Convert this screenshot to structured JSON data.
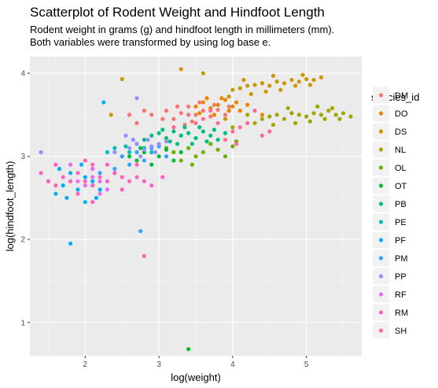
{
  "title": "Scatterplot of Rodent Weight and Hindfoot Length",
  "subtitle": [
    "Rodent weight in grams (g) and hindfoot length in millimeters (mm).",
    "Both variables were transformed by using log base e."
  ],
  "chart_data": {
    "type": "scatter",
    "title": "Scatterplot of Rodent Weight and Hindfoot Length",
    "xlabel": "log(weight)",
    "ylabel": "log(hindfoot_length)",
    "xlim": [
      1.25,
      5.75
    ],
    "ylim": [
      0.6,
      4.2
    ],
    "x_ticks": [
      2,
      3,
      4,
      5
    ],
    "y_ticks": [
      1,
      2,
      3,
      4
    ],
    "grid": true,
    "legend": {
      "title": "species_id",
      "position": "right"
    },
    "series": [
      {
        "name": "DM",
        "color": "#F8766D",
        "points": [
          [
            2.9,
            3.5
          ],
          [
            3.1,
            3.55
          ],
          [
            3.2,
            3.45
          ],
          [
            3.3,
            3.52
          ],
          [
            3.4,
            3.6
          ],
          [
            3.5,
            3.5
          ],
          [
            3.6,
            3.55
          ],
          [
            3.7,
            3.48
          ],
          [
            3.8,
            3.56
          ],
          [
            3.9,
            3.5
          ],
          [
            3.75,
            3.62
          ],
          [
            3.45,
            3.42
          ],
          [
            3.25,
            3.6
          ],
          [
            3.05,
            3.45
          ],
          [
            2.8,
            3.55
          ],
          [
            2.6,
            3.5
          ],
          [
            3.55,
            3.65
          ],
          [
            3.95,
            3.6
          ],
          [
            2.7,
            3.4
          ],
          [
            3.35,
            3.38
          ]
        ]
      },
      {
        "name": "DO",
        "color": "#E58700",
        "points": [
          [
            3.5,
            3.6
          ],
          [
            3.6,
            3.65
          ],
          [
            3.7,
            3.58
          ],
          [
            3.8,
            3.62
          ],
          [
            3.9,
            3.68
          ],
          [
            4.0,
            3.6
          ],
          [
            4.1,
            3.55
          ],
          [
            3.95,
            3.55
          ],
          [
            3.85,
            3.7
          ],
          [
            4.05,
            3.65
          ],
          [
            3.65,
            3.7
          ],
          [
            3.75,
            3.5
          ],
          [
            4.2,
            3.62
          ],
          [
            3.55,
            3.52
          ],
          [
            4.4,
            3.5
          ]
        ]
      },
      {
        "name": "DS",
        "color": "#C99800",
        "points": [
          [
            4.0,
            3.8
          ],
          [
            4.1,
            3.82
          ],
          [
            4.2,
            3.85
          ],
          [
            4.3,
            3.86
          ],
          [
            4.4,
            3.88
          ],
          [
            4.5,
            3.85
          ],
          [
            4.6,
            3.9
          ],
          [
            4.7,
            3.88
          ],
          [
            4.8,
            3.92
          ],
          [
            4.9,
            3.9
          ],
          [
            5.0,
            3.93
          ],
          [
            5.1,
            3.92
          ],
          [
            5.2,
            3.95
          ],
          [
            4.45,
            3.78
          ],
          [
            4.65,
            3.8
          ],
          [
            4.85,
            3.85
          ],
          [
            5.05,
            3.86
          ],
          [
            4.25,
            3.75
          ],
          [
            3.95,
            3.72
          ],
          [
            2.5,
            3.93
          ],
          [
            3.3,
            4.05
          ],
          [
            2.35,
            3.5
          ],
          [
            3.6,
            4.0
          ],
          [
            3.9,
            3.45
          ],
          [
            4.15,
            3.92
          ],
          [
            4.55,
            3.97
          ],
          [
            4.95,
            3.98
          ]
        ]
      },
      {
        "name": "NL",
        "color": "#A3A500",
        "points": [
          [
            4.4,
            3.45
          ],
          [
            4.5,
            3.48
          ],
          [
            4.6,
            3.5
          ],
          [
            4.7,
            3.45
          ],
          [
            4.8,
            3.52
          ],
          [
            4.9,
            3.5
          ],
          [
            5.0,
            3.48
          ],
          [
            5.1,
            3.52
          ],
          [
            5.2,
            3.5
          ],
          [
            5.3,
            3.55
          ],
          [
            5.4,
            3.5
          ],
          [
            5.5,
            3.52
          ],
          [
            5.6,
            3.48
          ],
          [
            4.85,
            3.4
          ],
          [
            5.05,
            3.42
          ],
          [
            5.25,
            3.45
          ],
          [
            4.55,
            3.38
          ],
          [
            5.45,
            3.45
          ],
          [
            4.2,
            3.5
          ],
          [
            4.3,
            3.4
          ],
          [
            4.0,
            3.35
          ],
          [
            4.75,
            3.58
          ],
          [
            5.15,
            3.6
          ],
          [
            5.35,
            3.58
          ]
        ]
      },
      {
        "name": "OL",
        "color": "#6BB100",
        "points": [
          [
            3.2,
            3.05
          ],
          [
            3.4,
            3.1
          ],
          [
            3.6,
            3.05
          ],
          [
            3.8,
            3.08
          ],
          [
            4.0,
            3.12
          ],
          [
            3.3,
            2.95
          ],
          [
            3.5,
            3.0
          ],
          [
            3.7,
            3.15
          ],
          [
            3.9,
            3.0
          ],
          [
            3.45,
            2.9
          ],
          [
            3.1,
            3.1
          ],
          [
            4.05,
            3.18
          ]
        ]
      },
      {
        "name": "OT",
        "color": "#00BA38",
        "points": [
          [
            2.6,
            3.0
          ],
          [
            2.8,
            3.05
          ],
          [
            3.0,
            3.0
          ],
          [
            3.2,
            2.95
          ],
          [
            2.9,
            2.9
          ],
          [
            3.1,
            3.08
          ],
          [
            2.7,
            2.95
          ],
          [
            3.3,
            3.05
          ],
          [
            2.75,
            3.1
          ],
          [
            3.4,
            0.68
          ]
        ]
      },
      {
        "name": "PB",
        "color": "#00BF7D",
        "points": [
          [
            2.9,
            3.25
          ],
          [
            3.0,
            3.28
          ],
          [
            3.1,
            3.22
          ],
          [
            3.2,
            3.3
          ],
          [
            3.3,
            3.25
          ],
          [
            3.4,
            3.28
          ],
          [
            3.5,
            3.22
          ],
          [
            3.6,
            3.3
          ],
          [
            3.7,
            3.25
          ],
          [
            3.8,
            3.2
          ],
          [
            3.15,
            3.18
          ],
          [
            3.35,
            3.35
          ],
          [
            3.55,
            3.35
          ],
          [
            3.05,
            3.32
          ],
          [
            3.25,
            3.15
          ],
          [
            3.45,
            3.15
          ],
          [
            3.65,
            3.18
          ],
          [
            3.75,
            3.32
          ],
          [
            2.8,
            3.2
          ],
          [
            3.9,
            3.28
          ]
        ]
      },
      {
        "name": "PE",
        "color": "#00C0B8",
        "points": [
          [
            2.4,
            3.1
          ],
          [
            2.6,
            3.05
          ],
          [
            2.8,
            3.1
          ],
          [
            2.5,
            3.0
          ],
          [
            2.7,
            3.15
          ],
          [
            2.9,
            3.05
          ],
          [
            2.3,
            3.05
          ],
          [
            2.55,
            3.12
          ]
        ]
      },
      {
        "name": "PF",
        "color": "#00B0F6",
        "points": [
          [
            1.5,
            2.7
          ],
          [
            1.7,
            2.65
          ],
          [
            1.8,
            2.8
          ],
          [
            1.9,
            2.6
          ],
          [
            2.0,
            2.75
          ],
          [
            2.1,
            2.7
          ],
          [
            1.6,
            2.55
          ],
          [
            2.2,
            2.6
          ],
          [
            1.8,
            1.95
          ],
          [
            2.25,
            3.65
          ],
          [
            2.0,
            2.45
          ],
          [
            1.75,
            2.5
          ],
          [
            1.95,
            2.9
          ],
          [
            2.15,
            2.5
          ],
          [
            2.3,
            2.7
          ],
          [
            1.65,
            2.85
          ]
        ]
      },
      {
        "name": "PM",
        "color": "#35A2FF",
        "points": [
          [
            2.5,
            3.0
          ],
          [
            2.7,
            3.05
          ],
          [
            2.9,
            3.1
          ],
          [
            3.1,
            3.0
          ],
          [
            2.6,
            2.9
          ],
          [
            2.8,
            2.95
          ],
          [
            3.0,
            3.12
          ],
          [
            2.4,
            2.85
          ],
          [
            2.75,
            2.1
          ],
          [
            2.65,
            3.2
          ],
          [
            2.2,
            2.8
          ]
        ]
      },
      {
        "name": "PP",
        "color": "#9590FF",
        "points": [
          [
            2.6,
            3.1
          ],
          [
            2.7,
            3.15
          ],
          [
            2.8,
            3.08
          ],
          [
            2.9,
            3.12
          ],
          [
            3.0,
            3.15
          ],
          [
            2.65,
            3.2
          ],
          [
            2.85,
            3.2
          ],
          [
            2.95,
            3.05
          ],
          [
            2.75,
            3.0
          ],
          [
            3.1,
            3.18
          ],
          [
            2.4,
            3.05
          ],
          [
            2.7,
            3.7
          ],
          [
            1.4,
            3.05
          ],
          [
            2.55,
            3.25
          ]
        ]
      },
      {
        "name": "RF",
        "color": "#E76BF3",
        "points": [
          [
            1.9,
            2.7
          ],
          [
            2.0,
            2.65
          ],
          [
            2.1,
            2.75
          ],
          [
            2.2,
            2.7
          ],
          [
            2.3,
            2.6
          ],
          [
            2.1,
            2.85
          ],
          [
            2.4,
            2.8
          ],
          [
            1.8,
            2.9
          ],
          [
            2.2,
            2.55
          ]
        ]
      },
      {
        "name": "RM",
        "color": "#FF62BC",
        "points": [
          [
            1.4,
            2.8
          ],
          [
            1.5,
            2.7
          ],
          [
            1.6,
            2.65
          ],
          [
            1.7,
            2.75
          ],
          [
            1.8,
            2.7
          ],
          [
            1.9,
            2.8
          ],
          [
            2.0,
            2.7
          ],
          [
            2.1,
            2.65
          ],
          [
            2.2,
            2.75
          ],
          [
            2.3,
            2.7
          ],
          [
            2.4,
            2.8
          ],
          [
            2.5,
            2.75
          ],
          [
            2.6,
            2.7
          ],
          [
            2.7,
            2.75
          ],
          [
            2.8,
            2.7
          ],
          [
            2.9,
            2.65
          ],
          [
            1.9,
            2.55
          ],
          [
            2.1,
            2.9
          ],
          [
            2.3,
            2.9
          ],
          [
            2.5,
            2.6
          ],
          [
            2.7,
            2.9
          ],
          [
            1.6,
            2.9
          ],
          [
            2.0,
            2.95
          ],
          [
            2.8,
            1.8
          ],
          [
            2.1,
            2.45
          ],
          [
            3.05,
            2.75
          ]
        ]
      },
      {
        "name": "SH",
        "color": "#FF6C91",
        "points": [
          [
            3.4,
            3.5
          ],
          [
            3.6,
            3.45
          ],
          [
            3.8,
            3.4
          ],
          [
            4.0,
            3.3
          ],
          [
            4.2,
            3.4
          ],
          [
            4.4,
            3.25
          ],
          [
            3.9,
            3.2
          ],
          [
            4.1,
            3.35
          ],
          [
            3.7,
            3.55
          ],
          [
            4.3,
            3.55
          ],
          [
            3.5,
            3.4
          ],
          [
            4.05,
            3.15
          ],
          [
            4.5,
            3.3
          ],
          [
            3.2,
            3.35
          ]
        ]
      }
    ]
  }
}
